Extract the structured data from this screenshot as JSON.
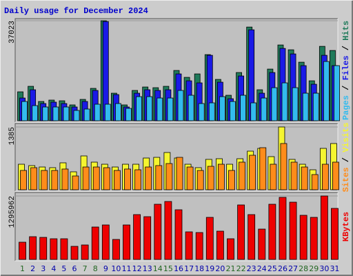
{
  "chart_data": [
    {
      "type": "bar",
      "title": "Daily usage for December 2024",
      "legend_separator": " / ",
      "ylim": [
        0,
        37023
      ],
      "yticks": [
        37023
      ],
      "series": [
        {
          "name": "Hits",
          "color": "#1f7a5a",
          "values": [
            10710,
            12750,
            7140,
            7650,
            7395,
            5865,
            7905,
            11985,
            37023,
            10200,
            5865,
            11220,
            12495,
            12240,
            12750,
            18615,
            16065,
            17340,
            24480,
            15300,
            9435,
            17850,
            34680,
            11475,
            19125,
            28050,
            26265,
            21675,
            14790,
            27540,
            26010
          ]
        },
        {
          "name": "Files",
          "color": "#1a1ae6",
          "values": [
            8415,
            11475,
            6375,
            6885,
            6375,
            5100,
            7140,
            11220,
            36720,
            9690,
            5100,
            10200,
            11475,
            11220,
            11475,
            17340,
            14790,
            14025,
            24225,
            14280,
            8160,
            16575,
            33660,
            10200,
            17850,
            26775,
            24735,
            20400,
            13515,
            24225,
            20400
          ]
        },
        {
          "name": "Pages",
          "color": "#33bbee",
          "values": [
            7140,
            5610,
            5100,
            5100,
            5100,
            3825,
            4335,
            6120,
            6120,
            6375,
            4590,
            8925,
            8925,
            8415,
            8415,
            11220,
            9435,
            6375,
            6630,
            8925,
            7140,
            9435,
            6630,
            8415,
            12240,
            14025,
            12240,
            10200,
            10200,
            21930,
            20400
          ]
        }
      ]
    },
    {
      "type": "bar",
      "ylim": [
        0,
        1385
      ],
      "yticks": [
        1385
      ],
      "series": [
        {
          "name": "Visits",
          "color": "#f5f530",
          "values": [
            563,
            533,
            502,
            487,
            594,
            396,
            746,
            609,
            563,
            502,
            563,
            563,
            700,
            715,
            822,
            700,
            563,
            487,
            670,
            685,
            563,
            685,
            852,
            913,
            731,
            1385,
            670,
            563,
            441,
            913,
            1020
          ]
        },
        {
          "name": "Sites",
          "color": "#ff8c1a",
          "values": [
            426,
            487,
            426,
            426,
            457,
            304,
            502,
            502,
            487,
            426,
            457,
            441,
            502,
            533,
            578,
            715,
            502,
            426,
            517,
            563,
            426,
            609,
            761,
            928,
            563,
            1020,
            609,
            502,
            335,
            563,
            609
          ]
        }
      ]
    },
    {
      "type": "bar",
      "ylim": [
        0,
        1295962
      ],
      "yticks": [
        1295962
      ],
      "categories": [
        "1",
        "2",
        "3",
        "4",
        "5",
        "6",
        "7",
        "8",
        "9",
        "10",
        "11",
        "12",
        "13",
        "14",
        "15",
        "16",
        "17",
        "18",
        "19",
        "20",
        "21",
        "22",
        "23",
        "24",
        "25",
        "26",
        "27",
        "28",
        "29",
        "30",
        "31"
      ],
      "category_colors": [
        "#226622",
        "#0000aa",
        "#0000aa",
        "#0000aa",
        "#0000aa",
        "#0000aa",
        "#226622",
        "#226622",
        "#0000aa",
        "#0000aa",
        "#0000aa",
        "#0000aa",
        "#0000aa",
        "#226622",
        "#226622",
        "#0000aa",
        "#0000aa",
        "#0000aa",
        "#0000aa",
        "#0000aa",
        "#226622",
        "#226622",
        "#0000aa",
        "#0000aa",
        "#0000aa",
        "#0000aa",
        "#0000aa",
        "#226622",
        "#226622",
        "#0000aa",
        "#0000aa"
      ],
      "series": [
        {
          "name": "KBytes",
          "color": "#ee0000",
          "values": [
            352175,
            464871,
            450784,
            422610,
            422610,
            267653,
            295827,
            662089,
            704350,
            408523,
            704350,
            915655,
            873394,
            1126960,
            1183308,
            1014264,
            563480,
            549393,
            859307,
            577567,
            422610,
            1112873,
            915655,
            619828,
            1126960,
            1267830,
            1169221,
            901568,
            859307,
            1295962,
            1042438
          ]
        }
      ]
    }
  ]
}
